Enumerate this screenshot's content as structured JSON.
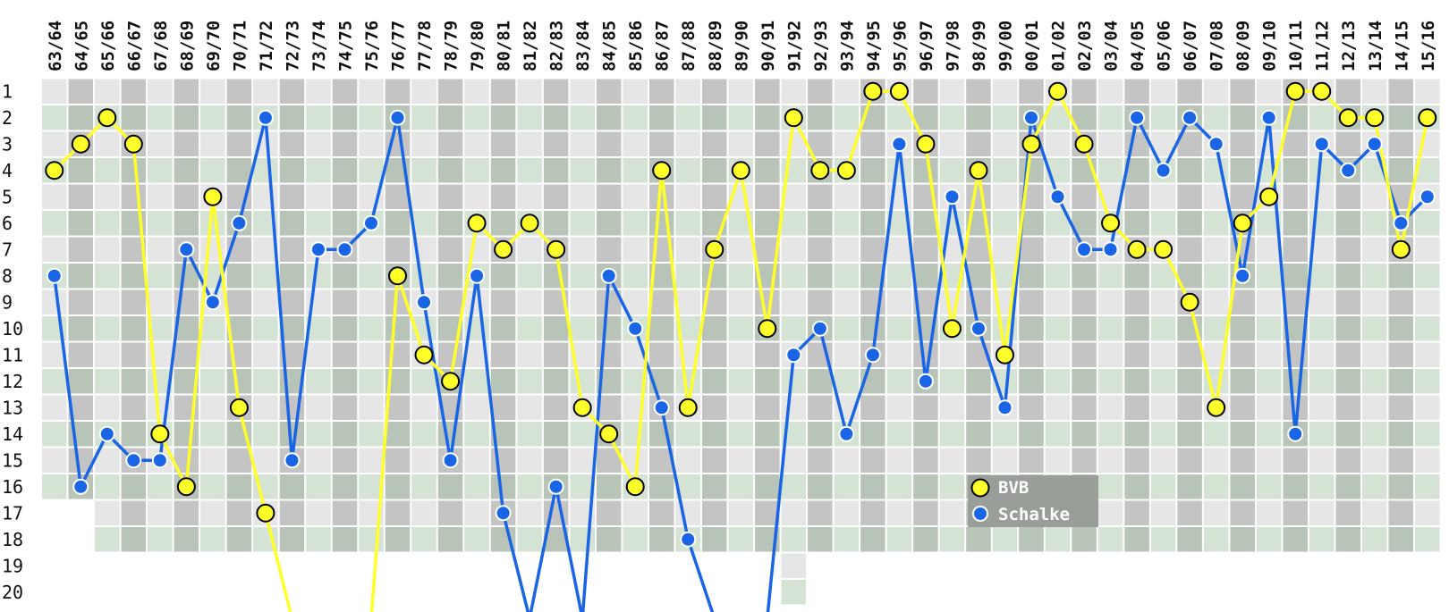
{
  "chart_data": {
    "type": "line",
    "title": "",
    "xlabel": "",
    "ylabel": "",
    "ylim": [
      1,
      20
    ],
    "y_axis": "inverted",
    "grid": true,
    "legend_placement": "bottom-center",
    "y_ticks": [
      1,
      2,
      3,
      4,
      5,
      6,
      7,
      8,
      9,
      10,
      11,
      12,
      13,
      14,
      15,
      16,
      17,
      18,
      19,
      20
    ],
    "categories": [
      "63/64",
      "64/65",
      "65/66",
      "66/67",
      "67/68",
      "68/69",
      "69/70",
      "70/71",
      "71/72",
      "72/73",
      "73/74",
      "74/75",
      "75/76",
      "76/77",
      "77/78",
      "78/79",
      "79/80",
      "80/81",
      "81/82",
      "82/83",
      "83/84",
      "84/85",
      "85/86",
      "86/87",
      "87/88",
      "88/89",
      "89/90",
      "90/91",
      "91/92",
      "92/93",
      "93/94",
      "94/95",
      "95/96",
      "96/97",
      "97/98",
      "98/99",
      "99/00",
      "00/01",
      "01/02",
      "02/03",
      "03/04",
      "04/05",
      "05/06",
      "06/07",
      "07/08",
      "08/09",
      "09/10",
      "10/11",
      "11/12",
      "12/13",
      "13/14",
      "14/15",
      "15/16"
    ],
    "league_size": [
      16,
      16,
      18,
      18,
      18,
      18,
      18,
      18,
      18,
      18,
      18,
      18,
      18,
      18,
      18,
      18,
      18,
      18,
      18,
      18,
      18,
      18,
      18,
      18,
      18,
      18,
      18,
      18,
      20,
      18,
      18,
      18,
      18,
      18,
      18,
      18,
      18,
      18,
      18,
      18,
      18,
      18,
      18,
      18,
      18,
      18,
      18,
      18,
      18,
      18,
      18,
      18,
      18
    ],
    "series": [
      {
        "name": "BVB",
        "color": "#ffff2a",
        "values": [
          4,
          3,
          2,
          3,
          14,
          16,
          5,
          13,
          17,
          21,
          null,
          null,
          21,
          8,
          11,
          12,
          6,
          7,
          6,
          7,
          13,
          14,
          16,
          4,
          13,
          7,
          4,
          10,
          2,
          4,
          4,
          1,
          1,
          3,
          10,
          4,
          11,
          3,
          1,
          3,
          6,
          7,
          7,
          9,
          13,
          6,
          5,
          1,
          1,
          2,
          2,
          7,
          2
        ]
      },
      {
        "name": "Schalke",
        "color": "#1a64e6",
        "values": [
          8,
          16,
          14,
          15,
          15,
          7,
          9,
          6,
          2,
          15,
          7,
          7,
          6,
          2,
          9,
          15,
          8,
          17,
          21,
          16,
          21,
          8,
          10,
          13,
          18,
          21,
          null,
          21,
          11,
          10,
          14,
          11,
          3,
          12,
          5,
          10,
          13,
          2,
          5,
          7,
          7,
          2,
          4,
          2,
          3,
          8,
          2,
          14,
          3,
          4,
          3,
          6,
          5
        ]
      }
    ]
  },
  "colors": {
    "grid_light_gray": "#e6e6e6",
    "grid_dark_gray": "#c4c4c4",
    "grid_light_green": "#d4e3d4",
    "grid_dark_green": "#b7c4b7",
    "legend_background": "#999e99"
  }
}
